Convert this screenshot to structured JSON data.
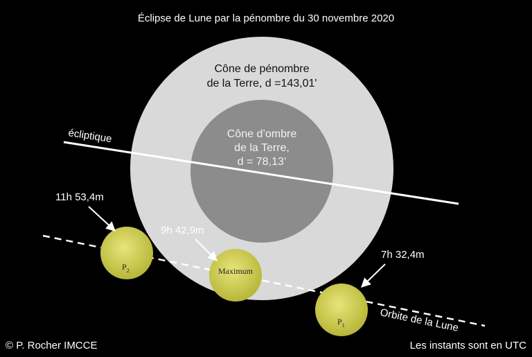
{
  "header": {
    "title": "Éclipse de Lune par la pénombre du 30 novembre 2020"
  },
  "penumbra": {
    "lines": [
      "Cône de pénombre",
      "de la Terre, d =143,01'"
    ]
  },
  "umbra": {
    "lines": [
      "Cône d’ombre",
      "de la Terre,",
      "d = 78,13’"
    ]
  },
  "ecliptic": {
    "label": "écliptique"
  },
  "orbit": {
    "label": "Orbite de la Lune"
  },
  "moons": [
    {
      "time": "11h 53,4m",
      "label": "P",
      "sub": "2"
    },
    {
      "time": "9h 42,9m",
      "label": "Maximum"
    },
    {
      "time": "7h 32,4m",
      "label": "P",
      "sub": "1"
    }
  ],
  "footer": {
    "credit": "© P. Rocher IMCCE",
    "note": "Les instants sont en UTC"
  }
}
